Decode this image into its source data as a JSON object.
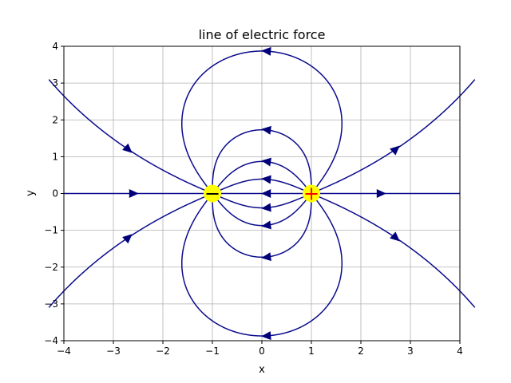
{
  "chart_data": {
    "type": "line",
    "title": "line of electric force",
    "xlabel": "x",
    "ylabel": "y",
    "xlim": [
      -4,
      4
    ],
    "ylim": [
      -4,
      4
    ],
    "x_ticks": [
      -4,
      -3,
      -2,
      -1,
      0,
      1,
      2,
      3,
      4
    ],
    "y_ticks": [
      -4,
      -3,
      -2,
      -1,
      0,
      1,
      2,
      3,
      4
    ],
    "x_tick_labels": [
      "−4",
      "−3",
      "−2",
      "−1",
      "0",
      "1",
      "2",
      "3",
      "4"
    ],
    "y_tick_labels": [
      "−4",
      "−3",
      "−2",
      "−1",
      "0",
      "1",
      "2",
      "3",
      "4"
    ],
    "grid": true,
    "charges": [
      {
        "x": -1,
        "y": 0,
        "sign": "negative",
        "symbol": "−"
      },
      {
        "x": 1,
        "y": 0,
        "sign": "positive",
        "symbol": "+"
      }
    ],
    "field_line_crossings_at_x0": [
      3.87,
      1.73,
      0.87,
      0.39,
      0,
      -0.39,
      -0.87,
      -1.73,
      -3.87
    ],
    "outer_lines": [
      {
        "x": -4,
        "y": 2.65
      },
      {
        "x": 4,
        "y": 2.65
      },
      {
        "x": -4,
        "y": -2.65
      },
      {
        "x": 4,
        "y": -2.65
      }
    ],
    "colors": {
      "lines": "#0a0a8c",
      "arrows": "#00007a",
      "charge_fill": "#ffff00",
      "charge_symbol": "#ff0000",
      "grid": "#b0b0b0"
    }
  }
}
